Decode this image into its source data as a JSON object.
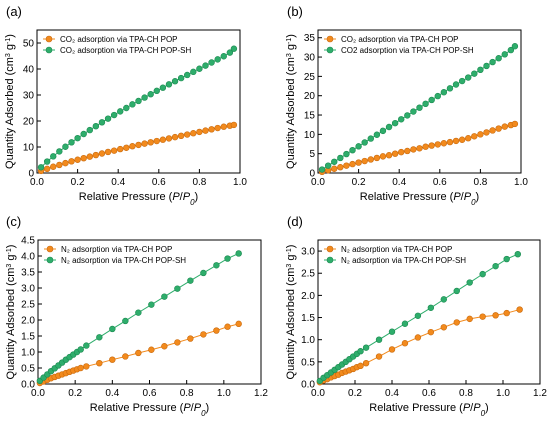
{
  "colors": {
    "orange": "#F28A1D",
    "green": "#2EAD6B",
    "orange_edge": "#C96A0E",
    "green_edge": "#1C8A51"
  },
  "chart_data": [
    {
      "panel": "(a)",
      "type": "scatter",
      "xlabel": "Relative Pressure (P/P₀)",
      "ylabel": "Quantity Adsorbed (cm³ g⁻¹)",
      "xlim": [
        0,
        1.0
      ],
      "ylim": [
        0,
        55
      ],
      "xticks": [
        "0.0",
        "0.2",
        "0.4",
        "0.6",
        "0.8",
        "1.0"
      ],
      "xtick_values": [
        0,
        0.2,
        0.4,
        0.6,
        0.8,
        1.0
      ],
      "yticks": [
        "0",
        "10",
        "20",
        "30",
        "40",
        "50"
      ],
      "ytick_values": [
        0,
        10,
        20,
        30,
        40,
        50
      ],
      "legend_position": "top-left",
      "series": [
        {
          "name": "CO₂ adsorption via TPA-CH POP",
          "color": "orange",
          "x": [
            0.02,
            0.05,
            0.08,
            0.11,
            0.14,
            0.17,
            0.2,
            0.23,
            0.26,
            0.29,
            0.32,
            0.35,
            0.38,
            0.41,
            0.44,
            0.47,
            0.5,
            0.53,
            0.56,
            0.59,
            0.62,
            0.65,
            0.68,
            0.71,
            0.74,
            0.77,
            0.8,
            0.83,
            0.86,
            0.89,
            0.92,
            0.95,
            0.97
          ],
          "y": [
            0.8,
            1.6,
            2.4,
            3.1,
            3.8,
            4.5,
            5.1,
            5.7,
            6.3,
            6.9,
            7.5,
            8.1,
            8.6,
            9.2,
            9.7,
            10.3,
            10.8,
            11.3,
            11.8,
            12.3,
            12.8,
            13.3,
            13.8,
            14.3,
            14.8,
            15.3,
            15.8,
            16.3,
            16.8,
            17.3,
            17.8,
            18.2,
            18.5
          ]
        },
        {
          "name": "CO₂ adsorption via TPA-CH POP-SH",
          "color": "green",
          "x": [
            0.02,
            0.05,
            0.08,
            0.11,
            0.14,
            0.17,
            0.2,
            0.23,
            0.26,
            0.29,
            0.32,
            0.35,
            0.38,
            0.41,
            0.44,
            0.47,
            0.5,
            0.53,
            0.56,
            0.59,
            0.62,
            0.65,
            0.68,
            0.71,
            0.74,
            0.77,
            0.8,
            0.83,
            0.86,
            0.89,
            0.92,
            0.95,
            0.97
          ],
          "y": [
            2.2,
            4.4,
            6.4,
            8.3,
            10.1,
            11.8,
            13.4,
            15.0,
            16.5,
            18.0,
            19.5,
            20.9,
            22.3,
            23.7,
            25.0,
            26.4,
            27.7,
            29.0,
            30.3,
            31.6,
            32.8,
            34.1,
            35.3,
            36.5,
            37.7,
            38.9,
            40.1,
            41.3,
            42.5,
            43.7,
            44.9,
            46.3,
            47.8
          ]
        }
      ]
    },
    {
      "panel": "(b)",
      "type": "scatter",
      "xlabel": "Relative Pressure (P/P₀)",
      "ylabel": "Quantity Adsorbed (cm³ g⁻¹)",
      "xlim": [
        0,
        1.0
      ],
      "ylim": [
        0,
        37
      ],
      "xticks": [
        "0.0",
        "0.2",
        "0.4",
        "0.6",
        "0.8",
        "1.0"
      ],
      "xtick_values": [
        0,
        0.2,
        0.4,
        0.6,
        0.8,
        1.0
      ],
      "yticks": [
        "0",
        "5",
        "10",
        "15",
        "20",
        "25",
        "30",
        "35"
      ],
      "ytick_values": [
        0,
        5,
        10,
        15,
        20,
        25,
        30,
        35
      ],
      "legend_position": "top-left",
      "series": [
        {
          "name": "CO₂ adsorption via TPA-CH POP",
          "color": "orange",
          "x": [
            0.02,
            0.05,
            0.08,
            0.11,
            0.14,
            0.17,
            0.2,
            0.23,
            0.26,
            0.29,
            0.32,
            0.35,
            0.38,
            0.41,
            0.44,
            0.47,
            0.5,
            0.53,
            0.56,
            0.59,
            0.62,
            0.65,
            0.68,
            0.71,
            0.74,
            0.77,
            0.8,
            0.83,
            0.86,
            0.89,
            0.92,
            0.95,
            0.97
          ],
          "y": [
            0.3,
            0.7,
            1.1,
            1.5,
            1.9,
            2.3,
            2.7,
            3.1,
            3.5,
            3.9,
            4.3,
            4.6,
            5.0,
            5.4,
            5.7,
            6.1,
            6.4,
            6.8,
            7.1,
            7.4,
            7.7,
            8.0,
            8.3,
            8.6,
            9.0,
            9.5,
            10.0,
            10.5,
            11.0,
            11.5,
            12.0,
            12.4,
            12.7
          ]
        },
        {
          "name": "CO2 adsorption via TPA-CH POP-SH",
          "color": "green",
          "x": [
            0.02,
            0.05,
            0.08,
            0.11,
            0.14,
            0.17,
            0.2,
            0.23,
            0.26,
            0.29,
            0.32,
            0.35,
            0.38,
            0.41,
            0.44,
            0.47,
            0.5,
            0.53,
            0.56,
            0.59,
            0.62,
            0.65,
            0.68,
            0.71,
            0.74,
            0.77,
            0.8,
            0.83,
            0.86,
            0.89,
            0.92,
            0.95,
            0.97
          ],
          "y": [
            0.9,
            1.9,
            2.9,
            3.9,
            4.9,
            5.9,
            6.9,
            7.9,
            8.9,
            9.9,
            10.9,
            11.9,
            12.9,
            13.9,
            14.9,
            15.9,
            16.9,
            17.9,
            18.9,
            19.9,
            20.9,
            21.9,
            22.9,
            23.8,
            24.7,
            25.7,
            26.7,
            27.7,
            28.7,
            29.7,
            30.7,
            31.8,
            32.8
          ]
        }
      ]
    },
    {
      "panel": "(c)",
      "type": "scatter",
      "xlabel": "Relative Pressure (P/P₀)",
      "ylabel": "Quantity Adsorbed (cm³ g⁻¹)",
      "xlim": [
        0,
        1.2
      ],
      "ylim": [
        0,
        4.5
      ],
      "xticks": [
        "0.0",
        "0.2",
        "0.4",
        "0.6",
        "0.8",
        "1.0",
        "1.2"
      ],
      "xtick_values": [
        0,
        0.2,
        0.4,
        0.6,
        0.8,
        1.0,
        1.2
      ],
      "yticks": [
        "0.0",
        "0.5",
        "1.0",
        "1.5",
        "2.0",
        "2.5",
        "3.0",
        "3.5",
        "4.0",
        "4.5"
      ],
      "ytick_values": [
        0,
        0.5,
        1.0,
        1.5,
        2.0,
        2.5,
        3.0,
        3.5,
        4.0,
        4.5
      ],
      "legend_position": "top-left",
      "series": [
        {
          "name": "N₂ adsorption via TPA-CH POP",
          "color": "orange",
          "x": [
            0.01,
            0.03,
            0.05,
            0.07,
            0.09,
            0.11,
            0.13,
            0.15,
            0.17,
            0.19,
            0.21,
            0.23,
            0.26,
            0.33,
            0.4,
            0.47,
            0.54,
            0.61,
            0.68,
            0.75,
            0.82,
            0.89,
            0.96,
            1.02,
            1.08
          ],
          "y": [
            0.03,
            0.08,
            0.13,
            0.18,
            0.22,
            0.26,
            0.3,
            0.34,
            0.38,
            0.42,
            0.46,
            0.5,
            0.55,
            0.65,
            0.76,
            0.86,
            0.97,
            1.07,
            1.18,
            1.3,
            1.42,
            1.55,
            1.67,
            1.79,
            1.88
          ]
        },
        {
          "name": "N₂ adsorption via TPA-CH POP-SH",
          "color": "green",
          "x": [
            0.01,
            0.03,
            0.05,
            0.07,
            0.09,
            0.11,
            0.13,
            0.15,
            0.17,
            0.19,
            0.21,
            0.23,
            0.26,
            0.33,
            0.4,
            0.47,
            0.54,
            0.61,
            0.68,
            0.75,
            0.82,
            0.89,
            0.96,
            1.02,
            1.08
          ],
          "y": [
            0.1,
            0.2,
            0.3,
            0.4,
            0.49,
            0.58,
            0.67,
            0.76,
            0.84,
            0.92,
            1.0,
            1.08,
            1.2,
            1.46,
            1.72,
            1.97,
            2.23,
            2.48,
            2.73,
            2.98,
            3.23,
            3.47,
            3.71,
            3.92,
            4.08
          ]
        }
      ]
    },
    {
      "panel": "(d)",
      "type": "scatter",
      "xlabel": "Relative Pressure (P/P₀)",
      "ylabel": "Quantity Adsorbed (cm³ g⁻¹)",
      "xlim": [
        0,
        1.2
      ],
      "ylim": [
        0,
        3.25
      ],
      "xticks": [
        "0.0",
        "0.2",
        "0.4",
        "0.6",
        "0.8",
        "1.0",
        "1.2"
      ],
      "xtick_values": [
        0,
        0.2,
        0.4,
        0.6,
        0.8,
        1.0,
        1.2
      ],
      "yticks": [
        "0.0",
        "0.5",
        "1.0",
        "1.5",
        "2.0",
        "2.5",
        "3.0"
      ],
      "ytick_values": [
        0,
        0.5,
        1.0,
        1.5,
        2.0,
        2.5,
        3.0
      ],
      "legend_position": "top-left",
      "series": [
        {
          "name": "N₂ adsorption via TPA-CH POP",
          "color": "orange",
          "x": [
            0.01,
            0.03,
            0.05,
            0.07,
            0.09,
            0.11,
            0.13,
            0.15,
            0.17,
            0.19,
            0.21,
            0.23,
            0.26,
            0.33,
            0.4,
            0.47,
            0.54,
            0.61,
            0.68,
            0.75,
            0.82,
            0.89,
            0.96,
            1.02,
            1.09
          ],
          "y": [
            0.04,
            0.08,
            0.11,
            0.15,
            0.18,
            0.21,
            0.25,
            0.28,
            0.31,
            0.34,
            0.38,
            0.41,
            0.47,
            0.62,
            0.78,
            0.92,
            1.05,
            1.17,
            1.28,
            1.39,
            1.47,
            1.52,
            1.55,
            1.6,
            1.68
          ]
        },
        {
          "name": "N₂ adsorption via TPA-CH POP-SH",
          "color": "green",
          "x": [
            0.01,
            0.03,
            0.05,
            0.07,
            0.09,
            0.11,
            0.13,
            0.15,
            0.17,
            0.19,
            0.21,
            0.23,
            0.26,
            0.33,
            0.4,
            0.47,
            0.54,
            0.61,
            0.68,
            0.75,
            0.82,
            0.89,
            0.96,
            1.02,
            1.08
          ],
          "y": [
            0.07,
            0.14,
            0.2,
            0.26,
            0.32,
            0.38,
            0.44,
            0.5,
            0.56,
            0.62,
            0.68,
            0.74,
            0.82,
            1.0,
            1.18,
            1.36,
            1.54,
            1.72,
            1.91,
            2.1,
            2.29,
            2.48,
            2.66,
            2.82,
            2.93
          ]
        }
      ]
    }
  ]
}
